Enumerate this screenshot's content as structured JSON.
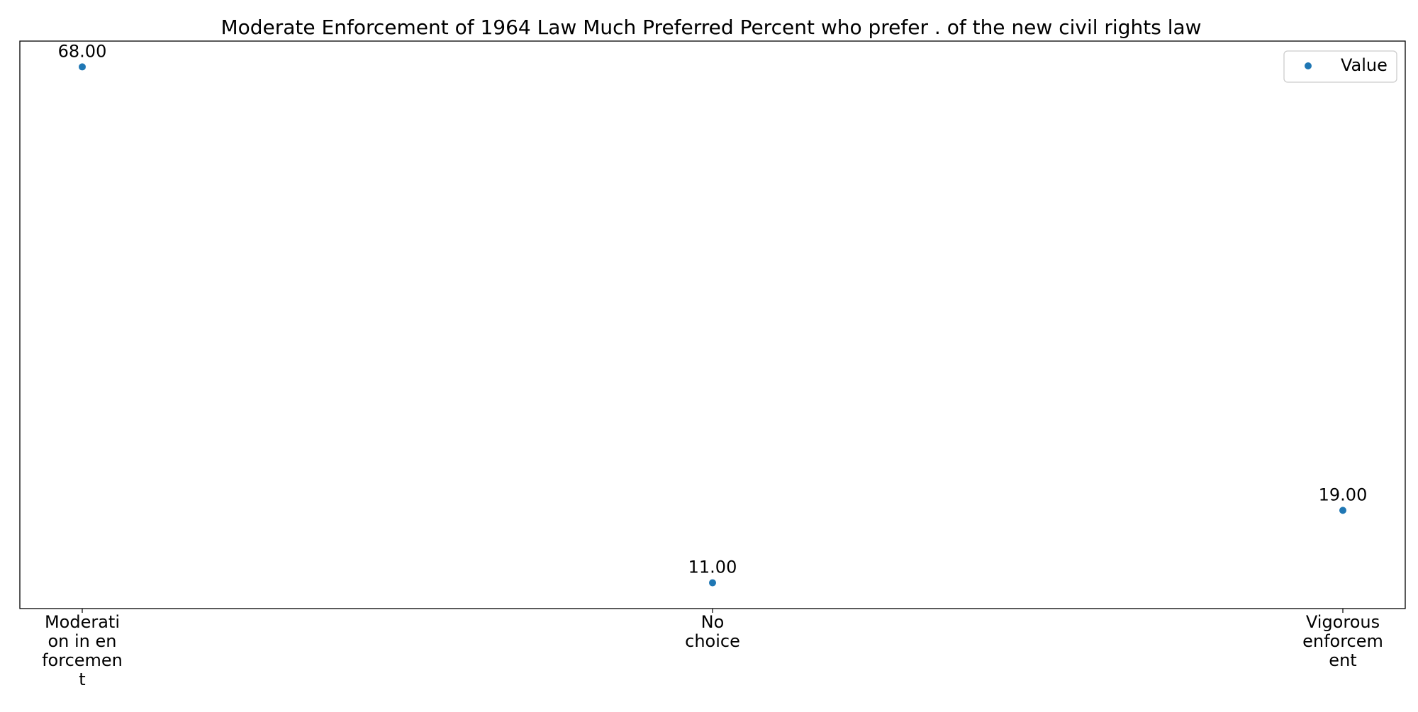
{
  "chart_data": {
    "type": "scatter",
    "title": "Moderate Enforcement of 1964 Law Much Preferred Percent who prefer . of the new civil rights law",
    "xlabel": "",
    "ylabel": "",
    "categories": [
      [
        "Moderati",
        "on in en",
        "forcemen",
        "t"
      ],
      [
        "No",
        "choice"
      ],
      [
        "Vigorous",
        "enforcem",
        "ent"
      ]
    ],
    "series": [
      {
        "name": "Value",
        "values": [
          68,
          11,
          19
        ],
        "color": "#1f77b4"
      }
    ],
    "data_labels": [
      "68.00",
      "11.00",
      "19.00"
    ],
    "ylim": [
      8.15,
      70.85
    ],
    "grid": false,
    "legend_position": "top-right",
    "y_ticks_visible": false
  }
}
